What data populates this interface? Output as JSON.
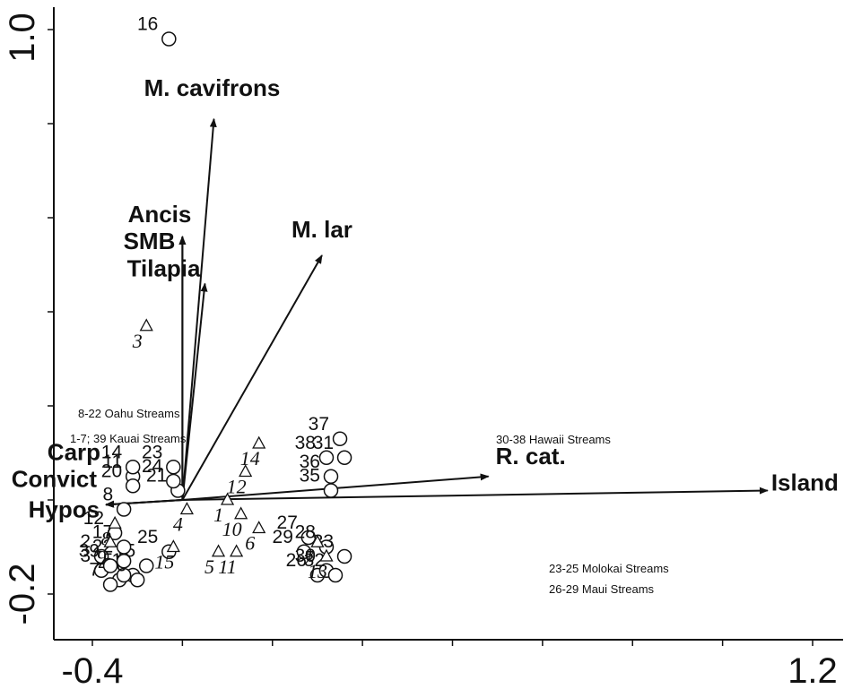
{
  "chart_data": {
    "type": "scatter",
    "title": "",
    "xlabel": "",
    "ylabel": "",
    "xlim": [
      -0.4,
      1.2
    ],
    "ylim": [
      -0.2,
      1.0
    ],
    "x_tick_labels": [
      "-0.4",
      "1.2"
    ],
    "y_tick_labels": [
      "-0.2",
      "1.0"
    ],
    "grid": false,
    "vectors": [
      {
        "name": "M. cavifrons",
        "x": -0.13,
        "y": 0.81
      },
      {
        "name": "Ancis",
        "x": -0.2,
        "y": 0.56
      },
      {
        "name": "SMB",
        "x": -0.2,
        "y": 0.56
      },
      {
        "name": "Tilapia",
        "x": -0.15,
        "y": 0.46
      },
      {
        "name": "M. lar",
        "x": 0.11,
        "y": 0.52
      },
      {
        "name": "R. cat.",
        "x": 0.48,
        "y": 0.05
      },
      {
        "name": "Island",
        "x": 1.1,
        "y": 0.02
      },
      {
        "name": "Carp",
        "x": -0.37,
        "y": -0.01
      },
      {
        "name": "Convict",
        "x": -0.37,
        "y": -0.01
      },
      {
        "name": "Hypos",
        "x": -0.37,
        "y": -0.01
      }
    ],
    "sites": [
      {
        "label": "1",
        "x": -0.31,
        "y": -0.16
      },
      {
        "label": "2",
        "x": -0.38,
        "y": -0.12
      },
      {
        "label": "3",
        "x": -0.38,
        "y": -0.15
      },
      {
        "label": "4",
        "x": -0.34,
        "y": -0.17
      },
      {
        "label": "5",
        "x": -0.33,
        "y": -0.16
      },
      {
        "label": "6",
        "x": -0.3,
        "y": -0.17
      },
      {
        "label": "7",
        "x": -0.36,
        "y": -0.18
      },
      {
        "label": "8",
        "x": -0.33,
        "y": -0.02
      },
      {
        "label": "11",
        "x": -0.31,
        "y": 0.05
      },
      {
        "label": "12",
        "x": -0.35,
        "y": -0.07
      },
      {
        "label": "14",
        "x": -0.31,
        "y": 0.07
      },
      {
        "label": "15",
        "x": -0.28,
        "y": -0.14
      },
      {
        "label": "16",
        "x": -0.23,
        "y": 0.98
      },
      {
        "label": "17",
        "x": -0.33,
        "y": -0.1
      },
      {
        "label": "20",
        "x": -0.31,
        "y": 0.03
      },
      {
        "label": "21",
        "x": -0.21,
        "y": 0.02
      },
      {
        "label": "22",
        "x": -0.33,
        "y": -0.13
      },
      {
        "label": "23",
        "x": -0.22,
        "y": 0.07
      },
      {
        "label": "24",
        "x": -0.22,
        "y": 0.04
      },
      {
        "label": "25",
        "x": -0.23,
        "y": -0.11
      },
      {
        "label": "26",
        "x": 0.1,
        "y": -0.16
      },
      {
        "label": "27",
        "x": 0.08,
        "y": -0.08
      },
      {
        "label": "28",
        "x": 0.12,
        "y": -0.1
      },
      {
        "label": "29",
        "x": 0.07,
        "y": -0.11
      },
      {
        "label": "30",
        "x": 0.12,
        "y": -0.15
      },
      {
        "label": "31",
        "x": 0.16,
        "y": 0.09
      },
      {
        "label": "32",
        "x": 0.14,
        "y": -0.16
      },
      {
        "label": "33",
        "x": 0.16,
        "y": -0.12
      },
      {
        "label": "35",
        "x": 0.13,
        "y": 0.02
      },
      {
        "label": "36",
        "x": 0.13,
        "y": 0.05
      },
      {
        "label": "37",
        "x": 0.15,
        "y": 0.13
      },
      {
        "label": "38",
        "x": 0.12,
        "y": 0.09
      },
      {
        "label": "39",
        "x": -0.36,
        "y": -0.14
      }
    ],
    "species": [
      {
        "label": "1",
        "x": -0.1,
        "y": 0.0
      },
      {
        "label": "3",
        "x": -0.28,
        "y": 0.37
      },
      {
        "label": "4",
        "x": -0.19,
        "y": -0.02
      },
      {
        "label": "5",
        "x": -0.12,
        "y": -0.11
      },
      {
        "label": "6",
        "x": -0.03,
        "y": -0.06
      },
      {
        "label": "7",
        "x": 0.1,
        "y": -0.09
      },
      {
        "label": "8",
        "x": -0.35,
        "y": -0.05
      },
      {
        "label": "9",
        "x": -0.36,
        "y": -0.09
      },
      {
        "label": "10",
        "x": -0.07,
        "y": -0.03
      },
      {
        "label": "11",
        "x": -0.08,
        "y": -0.11
      },
      {
        "label": "12",
        "x": -0.06,
        "y": 0.06
      },
      {
        "label": "13",
        "x": 0.12,
        "y": -0.12
      },
      {
        "label": "14",
        "x": -0.03,
        "y": 0.12
      },
      {
        "label": "15",
        "x": -0.22,
        "y": -0.1
      }
    ],
    "notes": [
      "8-22 Oahu Streams",
      "1-7; 39 Kauai Streams",
      "30-38 Hawaii Streams",
      "23-25 Molokai Streams",
      "26-29 Maui Streams"
    ]
  }
}
